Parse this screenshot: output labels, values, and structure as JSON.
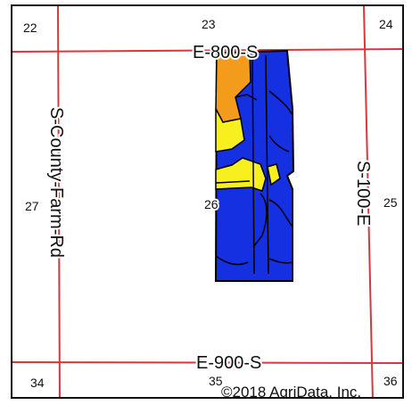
{
  "map": {
    "sections": {
      "s22": "22",
      "s23": "23",
      "s24": "24",
      "s25": "25",
      "s26": "26",
      "s27": "27",
      "s34": "34",
      "s35": "35",
      "s36": "36"
    },
    "roads": {
      "north": "E-800-S",
      "south": "E-900-S",
      "west": "S-County-Farm-Rd",
      "east": "S-100-E"
    },
    "copyright": "©2018 AgriData, Inc.",
    "colors": {
      "road": "#d8373d",
      "soil_blue": "#1530e0",
      "soil_yellow": "#f7ef1e",
      "soil_orange": "#f39b1a",
      "boundary": "#000000"
    }
  }
}
